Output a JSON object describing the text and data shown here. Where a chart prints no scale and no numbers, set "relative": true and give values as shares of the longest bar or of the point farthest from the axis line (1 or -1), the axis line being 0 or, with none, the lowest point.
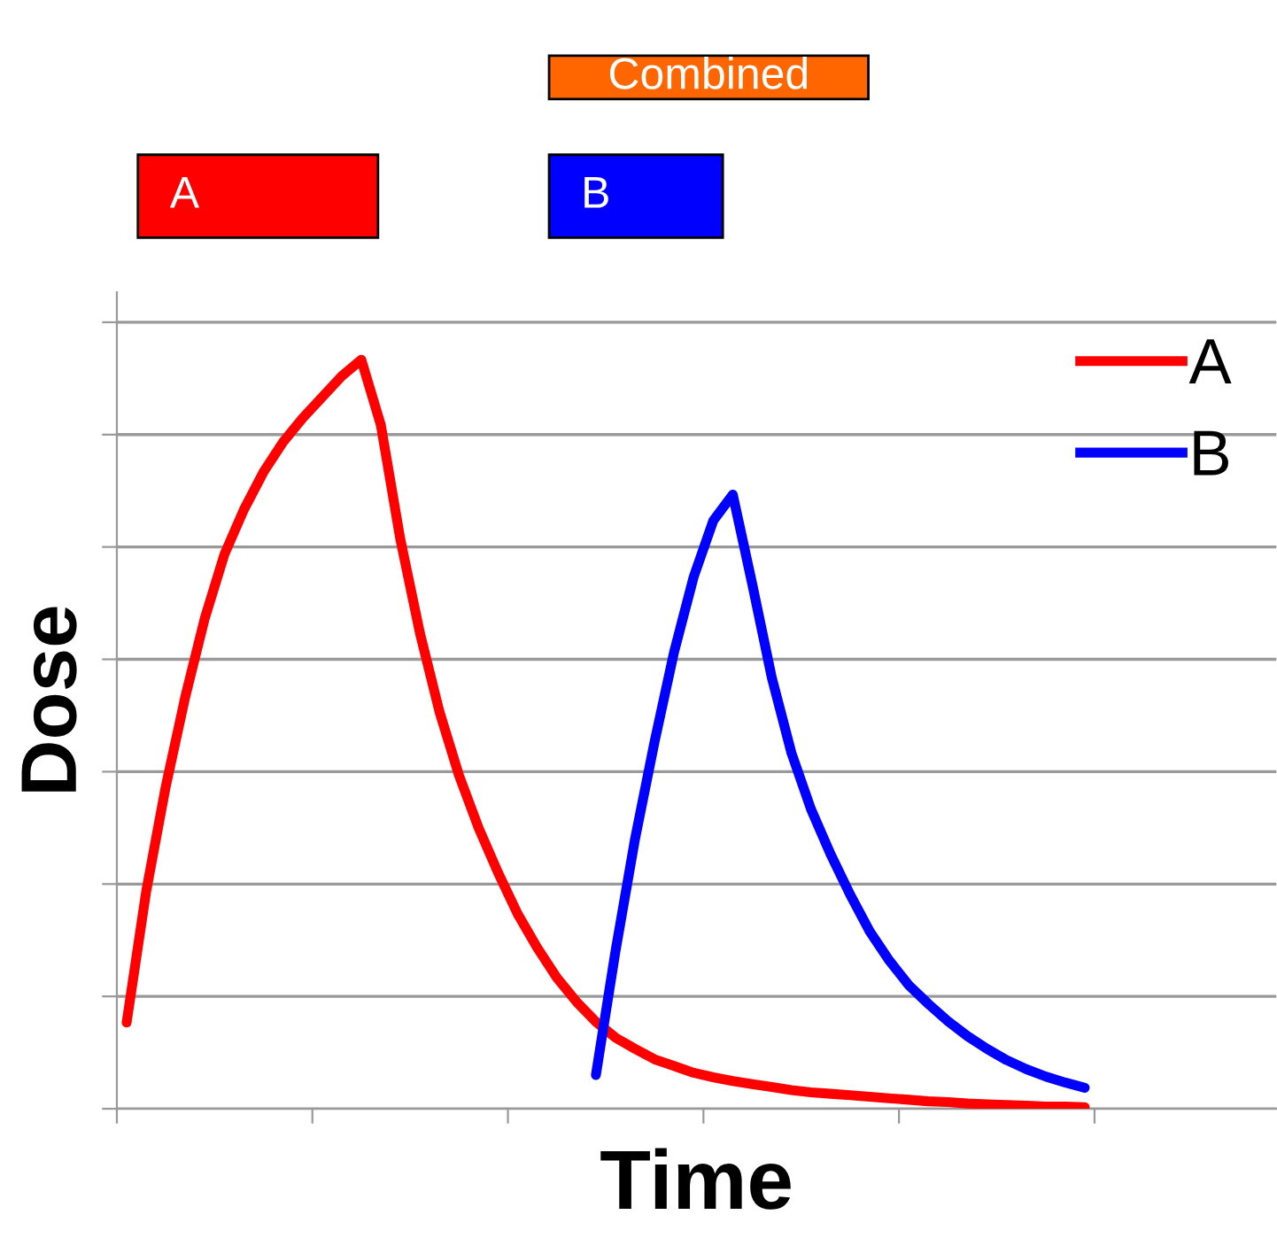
{
  "chart_data": {
    "type": "line",
    "relative": true,
    "xlabel": "Time",
    "ylabel": "Dose",
    "grid": "y",
    "legend": "top right",
    "line_style": "solid",
    "marker": "none",
    "annotations": [
      "Combined",
      "A",
      "B"
    ],
    "categories": [
      null,
      null,
      null,
      null,
      null,
      null,
      null,
      null,
      null,
      null,
      null,
      null,
      null,
      null,
      null,
      null,
      null,
      null,
      null,
      null,
      null,
      null,
      null,
      null,
      null,
      null,
      null,
      null,
      null,
      null,
      null,
      null,
      null,
      null,
      null,
      null,
      null,
      null,
      null,
      null,
      null,
      null,
      null,
      null,
      null,
      null,
      null,
      null,
      null,
      null
    ],
    "series": [
      {
        "name": "A",
        "color": "#ff0000",
        "values": [
          0.115,
          0.29,
          0.43,
          0.55,
          0.655,
          0.74,
          0.8,
          0.85,
          0.89,
          0.922,
          0.95,
          0.978,
          1.0,
          0.913,
          0.76,
          0.635,
          0.53,
          0.445,
          0.375,
          0.315,
          0.26,
          0.215,
          0.175,
          0.143,
          0.116,
          0.095,
          0.08,
          0.066,
          0.057,
          0.048,
          0.042,
          0.037,
          0.033,
          0.029,
          0.025,
          0.022,
          0.02,
          0.018,
          0.016,
          0.014,
          0.012,
          0.01,
          0.009,
          0.007,
          0.006,
          0.005,
          0.004,
          0.003,
          0.003,
          0.002
        ]
      },
      {
        "name": "B",
        "color": "#0000ff",
        "values": [
          null,
          null,
          null,
          null,
          null,
          null,
          null,
          null,
          null,
          null,
          null,
          null,
          null,
          null,
          null,
          null,
          null,
          null,
          null,
          null,
          null,
          null,
          null,
          null,
          0.045,
          0.21,
          0.36,
          0.49,
          0.61,
          0.71,
          0.785,
          0.82,
          0.7,
          0.575,
          0.475,
          0.4,
          0.34,
          0.286,
          0.237,
          0.198,
          0.165,
          0.14,
          0.117,
          0.097,
          0.08,
          0.065,
          0.053,
          0.043,
          0.035,
          0.028
        ]
      }
    ]
  }
}
